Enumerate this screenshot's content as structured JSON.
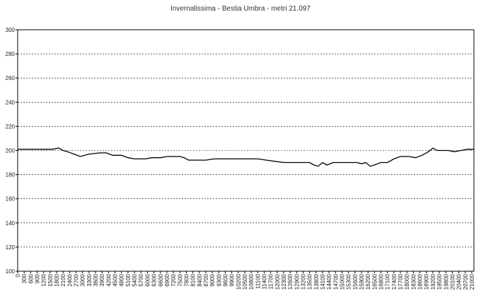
{
  "chart_data": {
    "type": "line",
    "title": "Invernalissima - Bestia Umbra - metri 21.097",
    "xlabel": "",
    "ylabel": "",
    "ylim": [
      100,
      300
    ],
    "xlim": [
      0,
      21100
    ],
    "grid": true,
    "grid_style": "dashed-horizontal",
    "line_color": "#000000",
    "y_ticks": [
      100,
      120,
      140,
      160,
      180,
      200,
      220,
      240,
      260,
      280,
      300
    ],
    "x_ticks": [
      0,
      300,
      600,
      900,
      1200,
      1500,
      1800,
      2100,
      2400,
      2700,
      3000,
      3300,
      3600,
      3900,
      4200,
      4500,
      4800,
      5100,
      5400,
      5700,
      6000,
      6300,
      6600,
      6900,
      7200,
      7500,
      7800,
      8100,
      8400,
      8700,
      9000,
      9300,
      9600,
      9900,
      10200,
      10500,
      10800,
      11100,
      11400,
      11700,
      12000,
      12300,
      12600,
      12900,
      13200,
      13500,
      13800,
      14100,
      14400,
      14700,
      15000,
      15300,
      15600,
      15900,
      16200,
      16500,
      16800,
      17100,
      17400,
      17700,
      18000,
      18300,
      18600,
      18900,
      19200,
      19500,
      19800,
      20100,
      20400,
      20700,
      21000
    ],
    "x_tick_labels": [
      "0",
      "300",
      "600",
      "900",
      "1200",
      "1500",
      "1800",
      "2100",
      "2400",
      "2700",
      "3000",
      "3300",
      "3600",
      "3900",
      "4200",
      "4500",
      "4800",
      "5100",
      "5400",
      "5700",
      "6000",
      "6300",
      "6600",
      "6900",
      "7200",
      "7500",
      "7800",
      "8100",
      "8400",
      "8700",
      "9000",
      "9300",
      "9600",
      "9900",
      "10200",
      "10500",
      "10800",
      "11100",
      "11400",
      "11700",
      "12000",
      "12300",
      "12600",
      "12900",
      "13200",
      "13500",
      "13800",
      "14100",
      "14400",
      "14700",
      "15000",
      "15300",
      "15600",
      "15900",
      "16200",
      "16500",
      "16800",
      "17100",
      "17400",
      "17700",
      "18000",
      "18300",
      "18600",
      "18900",
      "19200",
      "19500",
      "19800",
      "20100",
      "20400",
      "20700",
      "21000"
    ],
    "series": [
      {
        "x": [
          0,
          400,
          800,
          1200,
          1600,
          1900,
          2100,
          2300,
          2600,
          2900,
          3300,
          3800,
          4100,
          4400,
          4800,
          5100,
          5400,
          5700,
          5900,
          6200,
          6600,
          6900,
          7200,
          7500,
          7700,
          7900,
          8200,
          8700,
          9100,
          9600,
          10100,
          10600,
          11100,
          11500,
          11900,
          12300,
          12700,
          13100,
          13500,
          13700,
          13900,
          14100,
          14300,
          14600,
          15100,
          15500,
          15700,
          15900,
          16100,
          16300,
          16500,
          16800,
          17100,
          17400,
          17700,
          18100,
          18400,
          18700,
          19000,
          19200,
          19400,
          19600,
          19900,
          20200,
          20500,
          20800,
          21100
        ],
        "y": [
          201,
          201,
          201,
          201,
          201,
          202,
          200,
          199,
          197,
          195,
          197,
          198,
          198,
          196,
          196,
          194,
          193,
          193,
          193,
          194,
          194,
          195,
          195,
          195,
          194,
          192,
          192,
          192,
          193,
          193,
          193,
          193,
          193,
          192,
          191,
          190,
          190,
          190,
          190,
          188,
          187,
          190,
          188,
          190,
          190,
          190,
          190,
          189,
          190,
          187,
          188,
          190,
          190,
          193,
          195,
          195,
          194,
          196,
          199,
          202,
          200,
          200,
          200,
          199,
          200,
          201,
          201
        ]
      }
    ]
  }
}
